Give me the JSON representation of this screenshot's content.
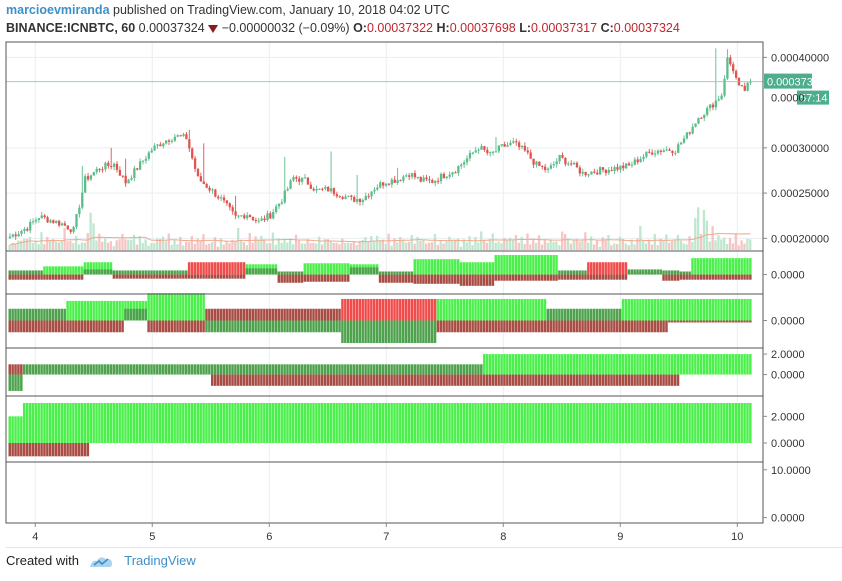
{
  "header": {
    "author": "marcioevmiranda",
    "published_text": "published on TradingView.com, January 10, 2018 04:02 UTC",
    "symbol": "BINANCE:ICNBTC, 60",
    "last": "0.00037324",
    "change_icon": "down-triangle-icon",
    "change": "−0.00000032 (−0.09%)",
    "o_label": "O:",
    "o_value": "0.00037322",
    "h_label": "H:",
    "h_value": "0.00037698",
    "l_label": "L:",
    "l_value": "0.00037317",
    "c_label": "C:",
    "c_value": "0.00037324"
  },
  "footer": {
    "created_with": "Created with",
    "brand": "TradingView",
    "logo_icon": "tradingview-logo-icon"
  },
  "colors": {
    "up": "#5bbd8a",
    "down": "#e0534f",
    "grid": "#e9eef2",
    "axis": "#555555",
    "last_price_bg": "#4cae8c",
    "ind_green": "#4cf04c",
    "ind_dkgreen": "#4ea24e",
    "ind_red": "#f04c4c",
    "ind_dkred": "#a84c44"
  },
  "chart_data": {
    "type": "candlestick",
    "x_tick_labels": [
      "4",
      "5",
      "6",
      "7",
      "8",
      "9",
      "10"
    ],
    "x_tick_positions": [
      3.5,
      4.5,
      5.5,
      6.5,
      7.5,
      8.5,
      9.5
    ],
    "x_range": [
      3.25,
      9.72
    ],
    "price_axis": {
      "ylim": [
        0.000186,
        0.000417
      ],
      "tick_values": [
        0.0002,
        0.00025,
        0.0003,
        0.0004
      ],
      "tick_labels": [
        "0.00020000",
        "0.00025000",
        "0.00030000",
        "0.00040000"
      ],
      "last_price": 0.00037324,
      "last_price_label": "0.00037324",
      "countdown_label": "57:14",
      "hidden_tick_label": "0.0000"
    },
    "close_anchors": [
      [
        0,
        0.000202
      ],
      [
        6,
        0.000212
      ],
      [
        10,
        0.000224
      ],
      [
        18,
        0.000216
      ],
      [
        22,
        0.000209
      ],
      [
        26,
        0.000265
      ],
      [
        31,
        0.000278
      ],
      [
        36,
        0.000282
      ],
      [
        40,
        0.000262
      ],
      [
        45,
        0.000282
      ],
      [
        49,
        0.000298
      ],
      [
        53,
        0.000307
      ],
      [
        57,
        0.000313
      ],
      [
        61,
        0.000311
      ],
      [
        65,
        0.000266
      ],
      [
        69,
        0.000255
      ],
      [
        73,
        0.000243
      ],
      [
        78,
        0.000223
      ],
      [
        82,
        0.000227
      ],
      [
        86,
        0.000218
      ],
      [
        90,
        0.000226
      ],
      [
        94,
        0.000243
      ],
      [
        98,
        0.000267
      ],
      [
        102,
        0.000264
      ],
      [
        106,
        0.000253
      ],
      [
        110,
        0.000254
      ],
      [
        114,
        0.000249
      ],
      [
        118,
        0.000243
      ],
      [
        122,
        0.000244
      ],
      [
        126,
        0.000256
      ],
      [
        130,
        0.000263
      ],
      [
        134,
        0.000265
      ],
      [
        138,
        0.000272
      ],
      [
        142,
        0.000264
      ],
      [
        146,
        0.000263
      ],
      [
        150,
        0.00027
      ],
      [
        154,
        0.000276
      ],
      [
        158,
        0.000288
      ],
      [
        162,
        0.000301
      ],
      [
        166,
        0.000292
      ],
      [
        170,
        0.000301
      ],
      [
        174,
        0.000305
      ],
      [
        178,
        0.000296
      ],
      [
        182,
        0.000281
      ],
      [
        186,
        0.000275
      ],
      [
        190,
        0.000289
      ],
      [
        194,
        0.000282
      ],
      [
        198,
        0.000272
      ],
      [
        202,
        0.000274
      ],
      [
        206,
        0.000276
      ],
      [
        210,
        0.000278
      ],
      [
        214,
        0.00028
      ],
      [
        218,
        0.000289
      ],
      [
        222,
        0.000296
      ],
      [
        226,
        0.000298
      ],
      [
        230,
        0.000298
      ],
      [
        234,
        0.000314
      ],
      [
        238,
        0.000334
      ],
      [
        242,
        0.000345
      ],
      [
        246,
        0.000359
      ],
      [
        248,
        0.000398
      ],
      [
        250,
        0.000387
      ],
      [
        252,
        0.000366
      ],
      [
        254,
        0.000364
      ],
      [
        256,
        0.000373
      ]
    ],
    "spikes": [
      [
        13,
        0.000225
      ],
      [
        25,
        0.00028
      ],
      [
        35,
        0.0003
      ],
      [
        40,
        0.000288
      ],
      [
        62,
        0.00032
      ],
      [
        67,
        0.000305
      ],
      [
        78,
        0.000247
      ],
      [
        95,
        0.00029
      ],
      [
        111,
        0.000296
      ],
      [
        120,
        0.00027
      ],
      [
        134,
        0.000278
      ],
      [
        168,
        0.000312
      ],
      [
        244,
        0.00041
      ],
      [
        248,
        0.000409
      ]
    ],
    "volume": {
      "seed": 7,
      "base": [
        2,
        4,
        3,
        5,
        3,
        4,
        3,
        6,
        3,
        4,
        3,
        5
      ],
      "big_bars": [
        [
          28,
          14
        ],
        [
          29,
          10
        ],
        [
          237,
          12
        ],
        [
          238,
          16
        ],
        [
          240,
          15
        ],
        [
          241,
          11
        ],
        [
          243,
          9
        ],
        [
          218,
          9
        ],
        [
          192,
          6
        ],
        [
          152,
          5
        ]
      ],
      "ma_note": "moving-average line over volume"
    },
    "indicator_panes": [
      {
        "name": "pane-1",
        "ylim": [
          -1.6,
          2.0
        ],
        "tick_labels": [
          "0.0000"
        ],
        "tick_values": [
          0
        ],
        "segments": [
          [
            0,
            12,
            "dkgreen",
            0.4,
            "dkred",
            -0.5
          ],
          [
            12,
            26,
            "ind_green",
            0.8,
            "dkred",
            -0.5
          ],
          [
            26,
            36,
            "ind_green",
            1.2,
            "dkgreen",
            0.5
          ],
          [
            36,
            62,
            "dkgreen",
            0.4,
            "dkred",
            -0.4
          ],
          [
            62,
            82,
            "ind_red",
            1.2,
            "dkred",
            -0.4
          ],
          [
            82,
            93,
            "ind_green",
            1.0,
            "dkgreen",
            0.6
          ],
          [
            93,
            102,
            "dkred",
            -0.8,
            "dkgreen",
            0.3
          ],
          [
            102,
            118,
            "ind_green",
            1.1,
            "dkred",
            -0.7
          ],
          [
            118,
            128,
            "ind_green",
            1.0,
            "dkgreen",
            0.7
          ],
          [
            128,
            140,
            "dkred",
            -0.8,
            "dkgreen",
            0.3
          ],
          [
            140,
            156,
            "ind_green",
            1.5,
            "dkred",
            -0.9
          ],
          [
            156,
            168,
            "ind_green",
            1.2,
            "dkred",
            -1.1
          ],
          [
            168,
            190,
            "ind_green",
            1.9,
            "dkred",
            -0.6
          ],
          [
            190,
            200,
            "dkred",
            -0.5,
            "dkgreen",
            0.4
          ],
          [
            200,
            214,
            "ind_red",
            1.2,
            "dkred",
            -0.5
          ],
          [
            214,
            226,
            "dkgreen",
            0.5,
            "dkgreen",
            0.2
          ],
          [
            226,
            232,
            "dkred",
            -0.6,
            "dkgreen",
            0.4
          ],
          [
            232,
            236,
            "dkgreen",
            0.3,
            "dkred",
            -0.5
          ],
          [
            236,
            257,
            "ind_green",
            1.6,
            "dkred",
            -0.5
          ]
        ]
      },
      {
        "name": "pane-2",
        "ylim": [
          -2.5,
          2.4
        ],
        "tick_labels": [
          "0.0000"
        ],
        "tick_values": [
          0
        ],
        "segments": [
          [
            0,
            20,
            "dkgreen",
            1.2,
            "dkred",
            -1.2
          ],
          [
            20,
            40,
            "ind_green",
            2.0,
            "dkred",
            -1.2
          ],
          [
            40,
            48,
            "ind_green",
            2.0,
            "dkgreen",
            1.2
          ],
          [
            48,
            68,
            "ind_green",
            2.8,
            "dkred",
            -1.2
          ],
          [
            68,
            80,
            "dkred",
            1.2,
            "dkgreen",
            -1.2
          ],
          [
            80,
            115,
            "dkred",
            1.2,
            "dkgreen",
            -1.2
          ],
          [
            115,
            148,
            "ind_red",
            2.2,
            "dkgreen",
            -2.3
          ],
          [
            148,
            186,
            "ind_green",
            2.2,
            "dkred",
            -1.2
          ],
          [
            186,
            212,
            "dkgreen",
            1.2,
            "dkred",
            -1.2
          ],
          [
            212,
            228,
            "ind_green",
            2.2,
            "dkred",
            -1.2
          ],
          [
            228,
            257,
            "ind_green",
            2.2,
            "dkred",
            -0.2
          ]
        ]
      },
      {
        "name": "pane-3",
        "ylim": [
          -1.8,
          2.3
        ],
        "tick_labels": [
          "2.0000",
          "0.0000"
        ],
        "tick_values": [
          2,
          0
        ],
        "segments": [
          [
            0,
            5,
            "dkred",
            1.0,
            "dkgreen",
            -1.6
          ],
          [
            5,
            70,
            "dkgreen",
            1.0,
            "dkgreen",
            0
          ],
          [
            70,
            164,
            "dkgreen",
            1.0,
            "dkred",
            -1.1
          ],
          [
            164,
            232,
            "ind_green",
            2.0,
            "dkred",
            -1.1
          ],
          [
            232,
            257,
            "ind_green",
            2.0,
            "dkgreen",
            0
          ]
        ]
      },
      {
        "name": "pane-4",
        "ylim": [
          -1.2,
          3.3
        ],
        "tick_labels": [
          "2.0000",
          "0.0000"
        ],
        "tick_values": [
          2,
          0
        ],
        "segments": [
          [
            0,
            5,
            "ind_green",
            2.0,
            "dkred",
            -1.0
          ],
          [
            5,
            28,
            "ind_green",
            3.0,
            "dkred",
            -1.0
          ],
          [
            28,
            257,
            "ind_green",
            3.0,
            "dkgreen",
            0
          ]
        ]
      },
      {
        "name": "pane-5",
        "ylim": [
          -0.5,
          11
        ],
        "tick_labels": [
          "10.0000",
          "0.0000"
        ],
        "tick_values": [
          10,
          0
        ],
        "segments": []
      }
    ],
    "bar_count": 257
  }
}
